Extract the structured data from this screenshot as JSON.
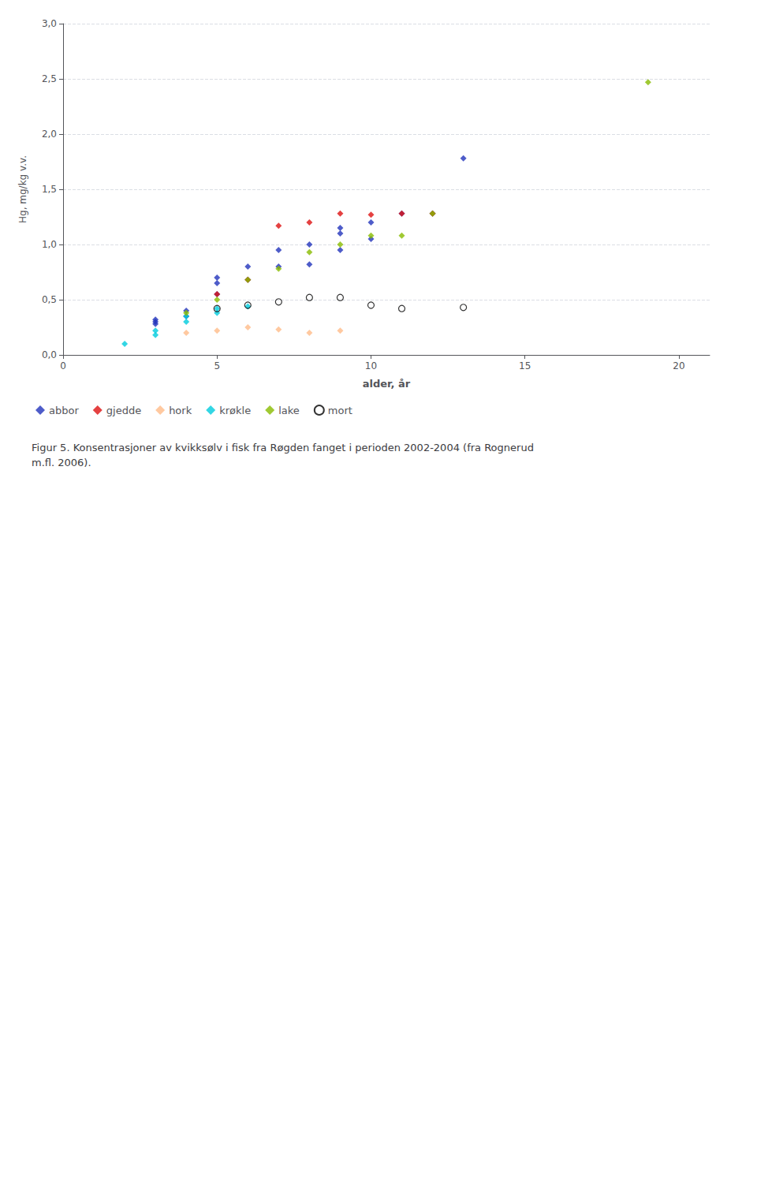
{
  "chart_data": {
    "type": "scatter",
    "title": "Figur 5. Konsentrasjoner av kvikksølv i fisk fra Røgden fanget i perioden 2002-2004 (fra Rognerud\nm.fl. 2006).",
    "xlabel": "alder, år",
    "ylabel": "Hg, mg/kg v.v.",
    "xlim": [
      0,
      21
    ],
    "ylim": [
      0.0,
      3.0
    ],
    "xticks": [
      0,
      5,
      10,
      15,
      20
    ],
    "yticks": [
      {
        "value": 0.0,
        "label": "0,0"
      },
      {
        "value": 0.5,
        "label": "0,5"
      },
      {
        "value": 1.0,
        "label": "1,0"
      },
      {
        "value": 1.5,
        "label": "1,5"
      },
      {
        "value": 2.0,
        "label": "2,0"
      },
      {
        "value": 2.5,
        "label": "2,5"
      },
      {
        "value": 3.0,
        "label": "3,0"
      }
    ],
    "grid": "y",
    "legend": "bottom",
    "series": [
      {
        "name": "abbor",
        "color": "#2233bb",
        "marker": "diamond",
        "x": [
          3,
          3,
          3,
          4,
          4,
          5,
          5,
          5,
          6,
          6,
          7,
          7,
          8,
          8,
          9,
          9,
          9,
          10,
          10,
          11,
          12,
          13
        ],
        "values": [
          0.28,
          0.3,
          0.32,
          0.35,
          0.4,
          0.55,
          0.65,
          0.7,
          0.68,
          0.8,
          0.8,
          0.95,
          0.82,
          1.0,
          0.95,
          1.1,
          1.15,
          1.05,
          1.2,
          1.28,
          1.28,
          1.78
        ]
      },
      {
        "name": "gjedde",
        "color": "#dd1111",
        "marker": "diamond",
        "x": [
          5,
          6,
          7,
          8,
          9,
          10,
          11,
          12
        ],
        "values": [
          0.55,
          0.68,
          1.17,
          1.2,
          1.28,
          1.27,
          1.28,
          1.28
        ]
      },
      {
        "name": "hork",
        "color": "#ffbb88",
        "marker": "diamond",
        "x": [
          4,
          5,
          6,
          7,
          8,
          9
        ],
        "values": [
          0.2,
          0.22,
          0.25,
          0.23,
          0.2,
          0.22
        ]
      },
      {
        "name": "krøkle",
        "color": "#00ccdd",
        "marker": "diamond",
        "x": [
          2,
          3,
          3,
          4,
          4,
          5,
          5,
          6
        ],
        "values": [
          0.1,
          0.18,
          0.22,
          0.3,
          0.35,
          0.38,
          0.42,
          0.44
        ]
      },
      {
        "name": "lake",
        "color": "#88bb00",
        "marker": "diamond",
        "x": [
          4,
          5,
          6,
          7,
          8,
          9,
          10,
          11,
          12,
          19
        ],
        "values": [
          0.38,
          0.5,
          0.68,
          0.78,
          0.93,
          1.0,
          1.08,
          1.08,
          1.28,
          2.47
        ]
      },
      {
        "name": "mort",
        "color": "#000000",
        "marker": "ring",
        "x": [
          5,
          6,
          7,
          8,
          9,
          10,
          11,
          13
        ],
        "values": [
          0.42,
          0.45,
          0.48,
          0.52,
          0.52,
          0.45,
          0.42,
          0.43
        ]
      }
    ]
  }
}
